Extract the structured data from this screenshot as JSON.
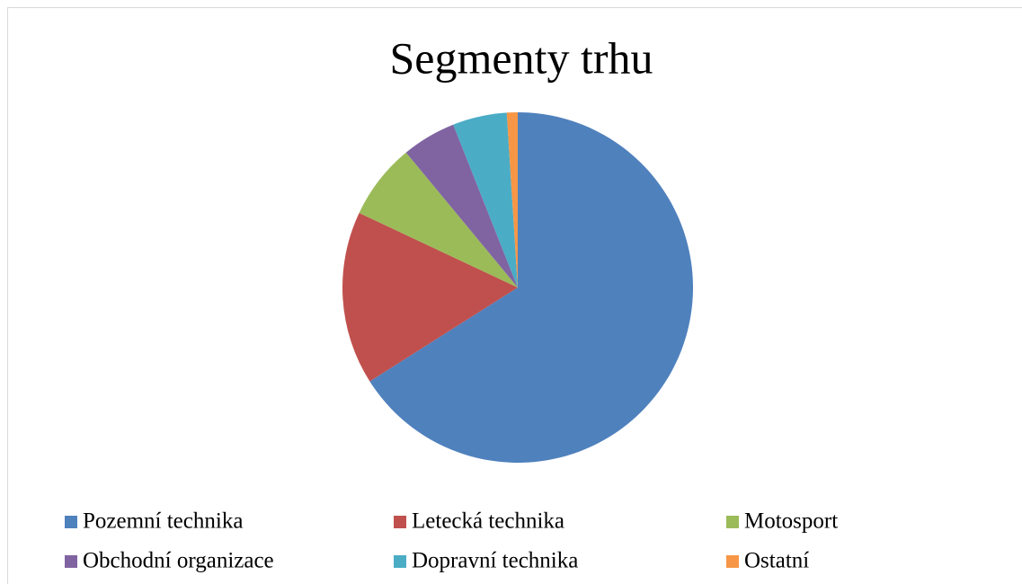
{
  "chart_data": {
    "type": "pie",
    "title": "Segmenty trhu",
    "categories": [
      "Pozemní technika",
      "Letecká technika",
      "Motosport",
      "Obchodní organizace",
      "Dopravní technika",
      "Ostatní"
    ],
    "values": [
      66,
      16,
      7,
      5,
      5,
      1
    ],
    "colors": [
      "#4f81bd",
      "#c0504d",
      "#9bbb59",
      "#8064a2",
      "#4bacc6",
      "#f79646"
    ],
    "legend": "bottom"
  }
}
